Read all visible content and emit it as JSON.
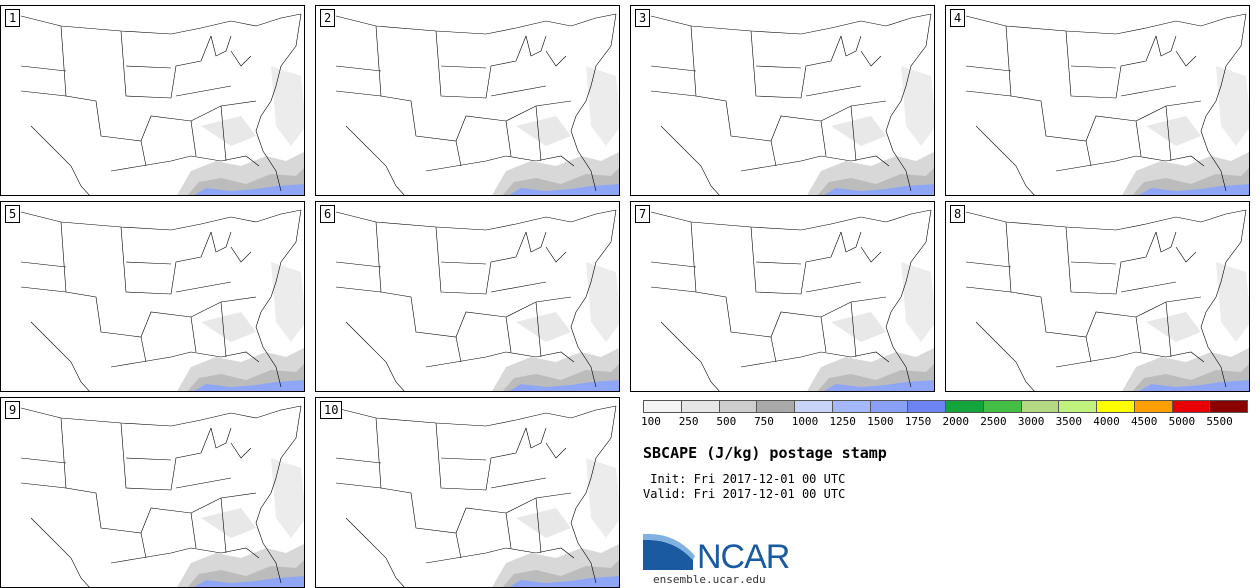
{
  "panels": [
    {
      "label": "1"
    },
    {
      "label": "2"
    },
    {
      "label": "3"
    },
    {
      "label": "4"
    },
    {
      "label": "5"
    },
    {
      "label": "6"
    },
    {
      "label": "7"
    },
    {
      "label": "8"
    },
    {
      "label": "9"
    },
    {
      "label": "10"
    }
  ],
  "legend": {
    "colors": [
      "#f4f4f4",
      "#e6e6e6",
      "#cdcdcd",
      "#a9a9a9",
      "#c9d4fb",
      "#a4b8fb",
      "#8aa0f7",
      "#6c83f2",
      "#14a43c",
      "#44be44",
      "#b4d884",
      "#c0f27e",
      "#ffff00",
      "#fe9e02",
      "#e80000",
      "#8a0000"
    ],
    "labels": [
      "100",
      "250",
      "500",
      "750",
      "1000",
      "1250",
      "1500",
      "1750",
      "2000",
      "2500",
      "3000",
      "3500",
      "4000",
      "4500",
      "5000",
      "5500"
    ]
  },
  "title": "SBCAPE (J/kg) postage stamp",
  "init_line": " Init: Fri 2017-12-01 00 UTC",
  "valid_line": "Valid: Fri 2017-12-01 00 UTC",
  "logo_text": "NCAR",
  "site": "ensemble.ucar.edu"
}
